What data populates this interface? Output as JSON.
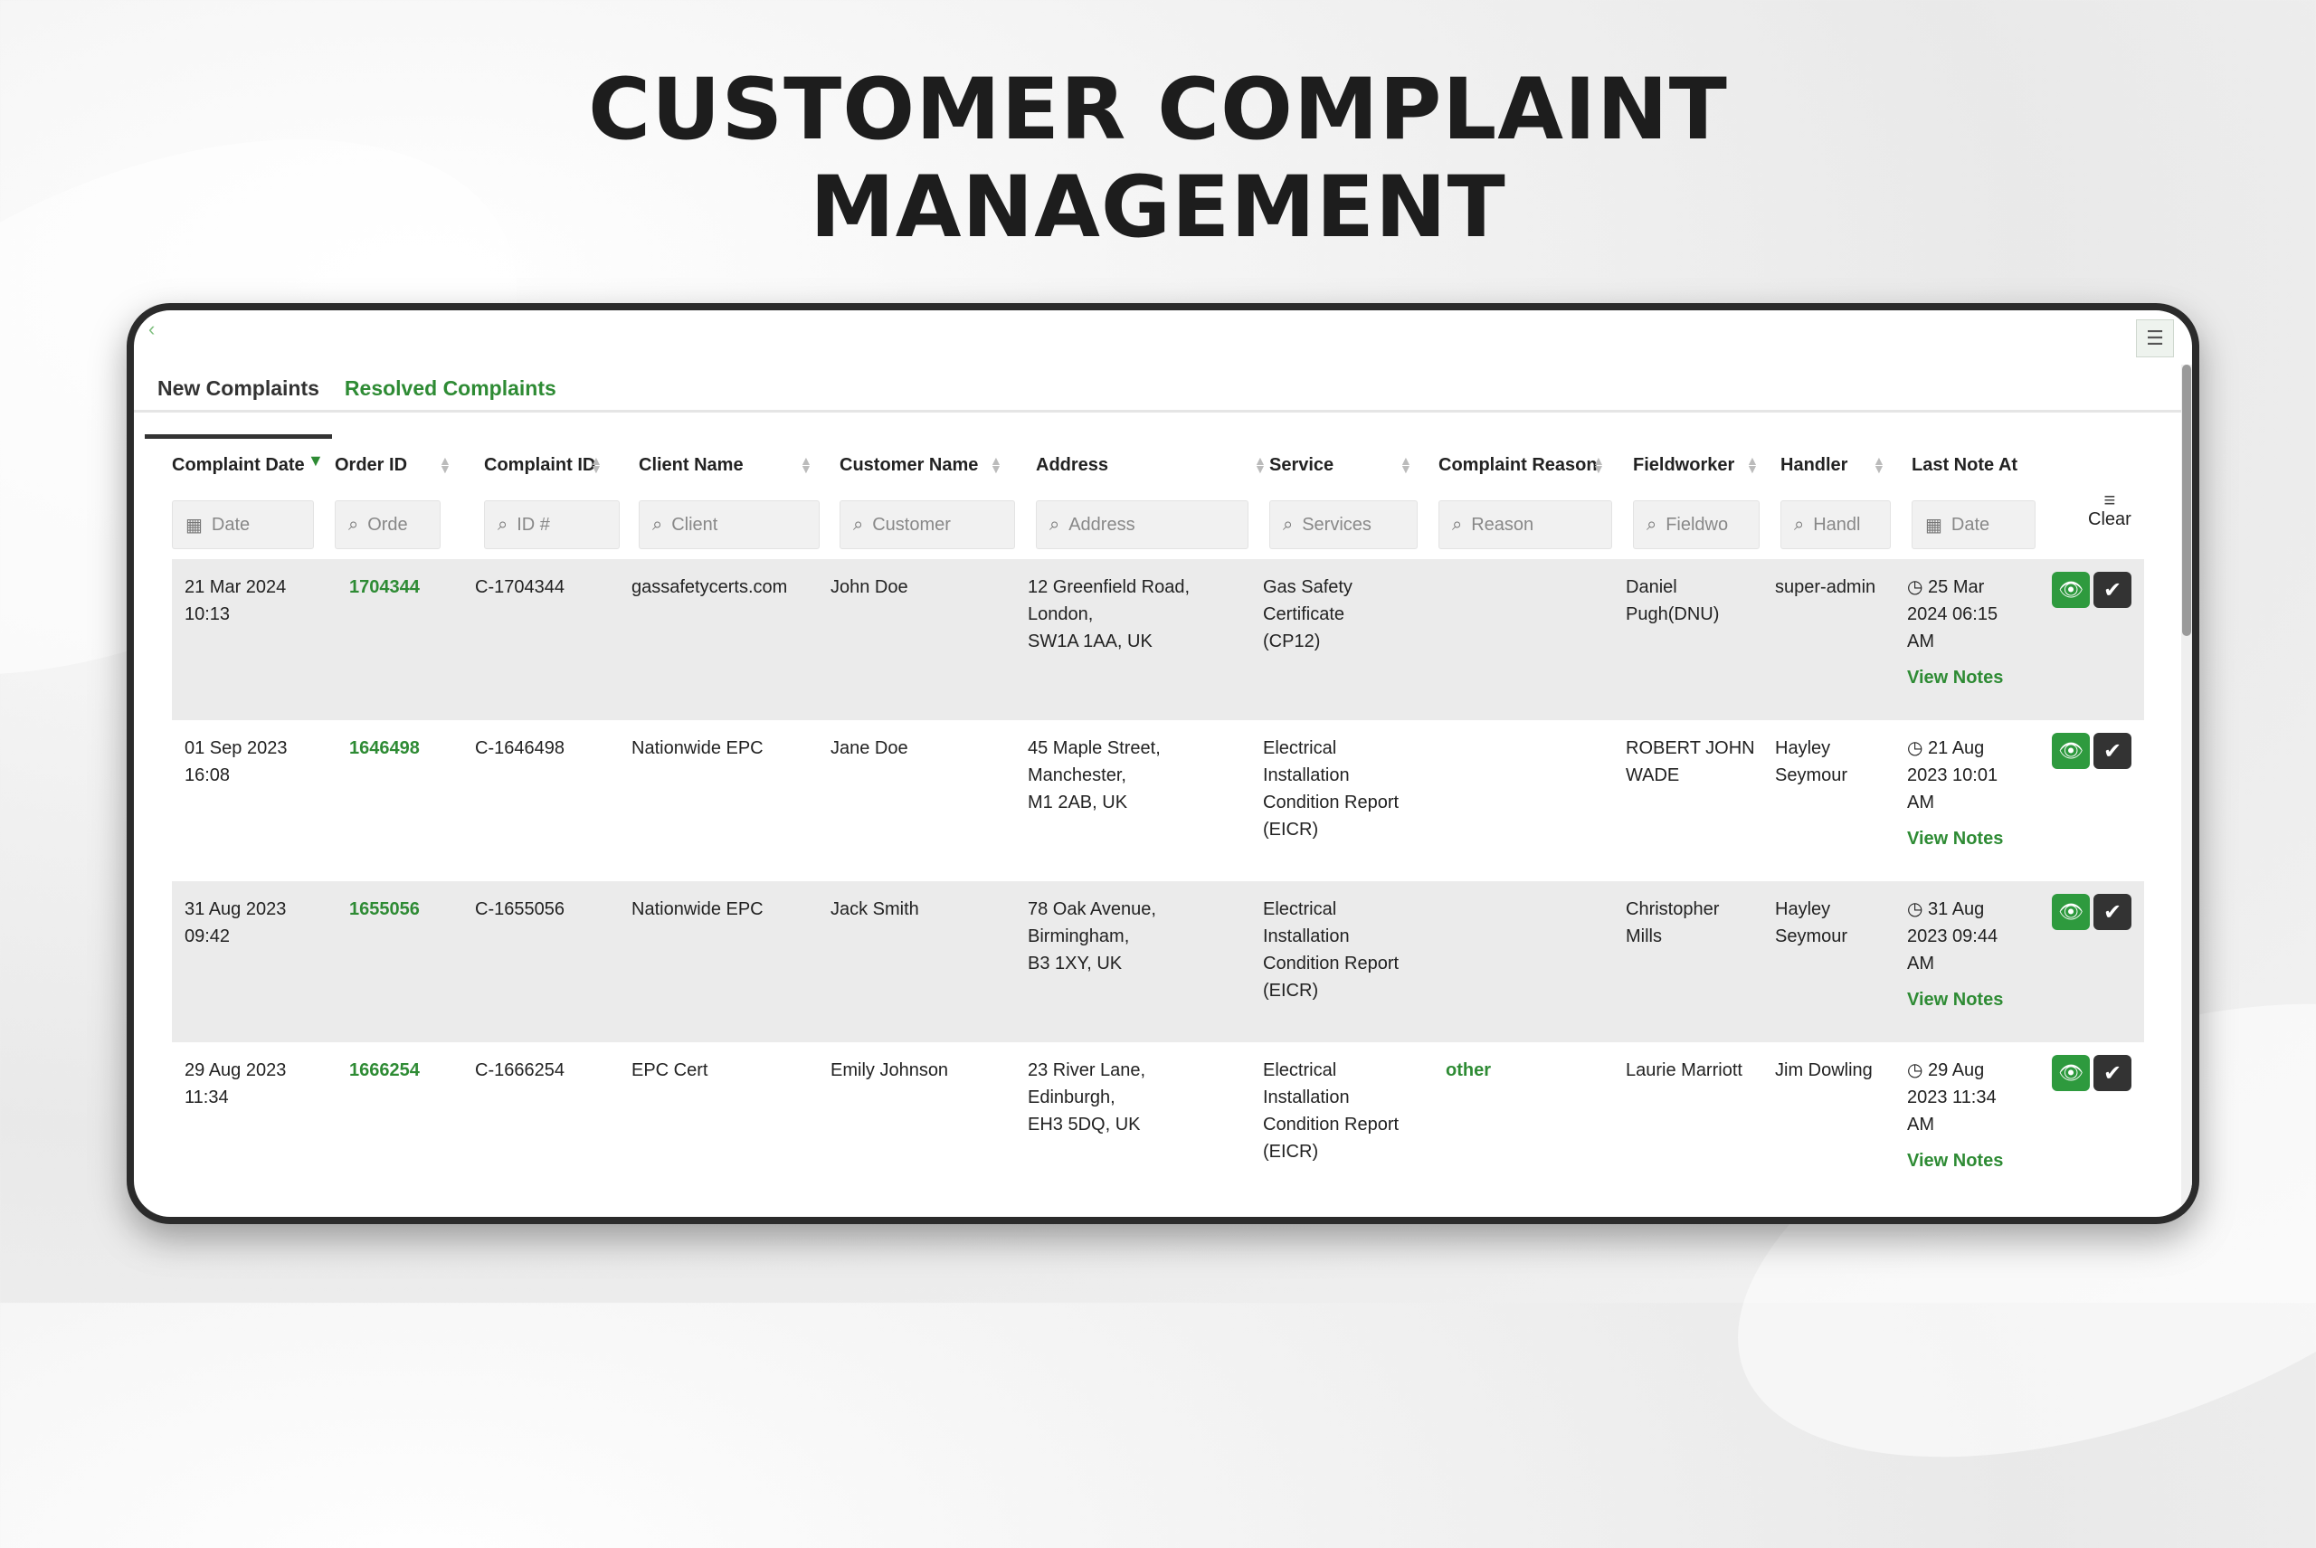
{
  "page": {
    "title_line1": "CUSTOMER COMPLAINT",
    "title_line2": "MANAGEMENT"
  },
  "tabs": [
    {
      "label": "New Complaints",
      "active": true
    },
    {
      "label": "Resolved Complaints",
      "active": false
    }
  ],
  "columns": [
    {
      "label": "Complaint Date",
      "filter_placeholder": "Date",
      "filter_icon": "calendar-icon"
    },
    {
      "label": "Order ID",
      "filter_placeholder": "Orde",
      "filter_icon": "search-icon"
    },
    {
      "label": "Complaint ID",
      "filter_placeholder": "ID #",
      "filter_icon": "search-icon"
    },
    {
      "label": "Client Name",
      "filter_placeholder": "Client",
      "filter_icon": "search-icon"
    },
    {
      "label": "Customer Name",
      "filter_placeholder": "Customer",
      "filter_icon": "search-icon"
    },
    {
      "label": "Address",
      "filter_placeholder": "Address",
      "filter_icon": "search-icon"
    },
    {
      "label": "Service",
      "filter_placeholder": "Services",
      "filter_icon": "search-icon"
    },
    {
      "label": "Complaint Reason",
      "filter_placeholder": "Reason",
      "filter_icon": "search-icon"
    },
    {
      "label": "Fieldworker",
      "filter_placeholder": "Fieldwo",
      "filter_icon": "search-icon"
    },
    {
      "label": "Handler",
      "filter_placeholder": "Handl",
      "filter_icon": "search-icon"
    },
    {
      "label": "Last Note At",
      "filter_placeholder": "Date",
      "filter_icon": "calendar-icon"
    }
  ],
  "clear_label": "Clear",
  "view_notes_label": "View Notes",
  "rows": [
    {
      "date": [
        "21 Mar 2024",
        "10:13"
      ],
      "order_id": "1704344",
      "complaint_id": "C-1704344",
      "client": "gassafetycerts.com",
      "customer": "John Doe",
      "address": [
        "12 Greenfield Road,",
        "London,",
        "SW1A 1AA, UK"
      ],
      "service": [
        "Gas Safety",
        "Certificate",
        "(CP12)"
      ],
      "reason": "",
      "fieldworker": [
        "Daniel",
        "Pugh(DNU)"
      ],
      "handler": [
        "super-admin"
      ],
      "last_note": [
        "25 Mar",
        "2024 06:15",
        "AM"
      ]
    },
    {
      "date": [
        "01 Sep 2023",
        "16:08"
      ],
      "order_id": "1646498",
      "complaint_id": "C-1646498",
      "client": "Nationwide EPC",
      "customer": "Jane Doe",
      "address": [
        "45 Maple Street,",
        "Manchester,",
        "M1 2AB, UK"
      ],
      "service": [
        "Electrical",
        "Installation",
        "Condition Report",
        "(EICR)"
      ],
      "reason": "",
      "fieldworker": [
        "ROBERT JOHN",
        "WADE"
      ],
      "handler": [
        "Hayley",
        "Seymour"
      ],
      "last_note": [
        "21 Aug",
        "2023 10:01",
        "AM"
      ]
    },
    {
      "date": [
        "31 Aug 2023",
        "09:42"
      ],
      "order_id": "1655056",
      "complaint_id": "C-1655056",
      "client": "Nationwide EPC",
      "customer": "Jack Smith",
      "address": [
        "78 Oak Avenue,",
        "Birmingham,",
        "B3 1XY, UK"
      ],
      "service": [
        "Electrical",
        "Installation",
        "Condition Report",
        "(EICR)"
      ],
      "reason": "",
      "fieldworker": [
        "Christopher",
        "Mills"
      ],
      "handler": [
        "Hayley",
        "Seymour"
      ],
      "last_note": [
        "31 Aug",
        "2023 09:44",
        "AM"
      ]
    },
    {
      "date": [
        "29 Aug 2023",
        "11:34"
      ],
      "order_id": "1666254",
      "complaint_id": "C-1666254",
      "client": "EPC Cert",
      "customer": "Emily Johnson",
      "address": [
        "23 River Lane,",
        "Edinburgh,",
        "EH3 5DQ, UK"
      ],
      "service": [
        "Electrical",
        "Installation",
        "Condition Report",
        "(EICR)"
      ],
      "reason": "other",
      "fieldworker": [
        "Laurie Marriott"
      ],
      "handler": [
        "Jim Dowling"
      ],
      "last_note": [
        "29 Aug",
        "2023 11:34",
        "AM"
      ]
    }
  ]
}
